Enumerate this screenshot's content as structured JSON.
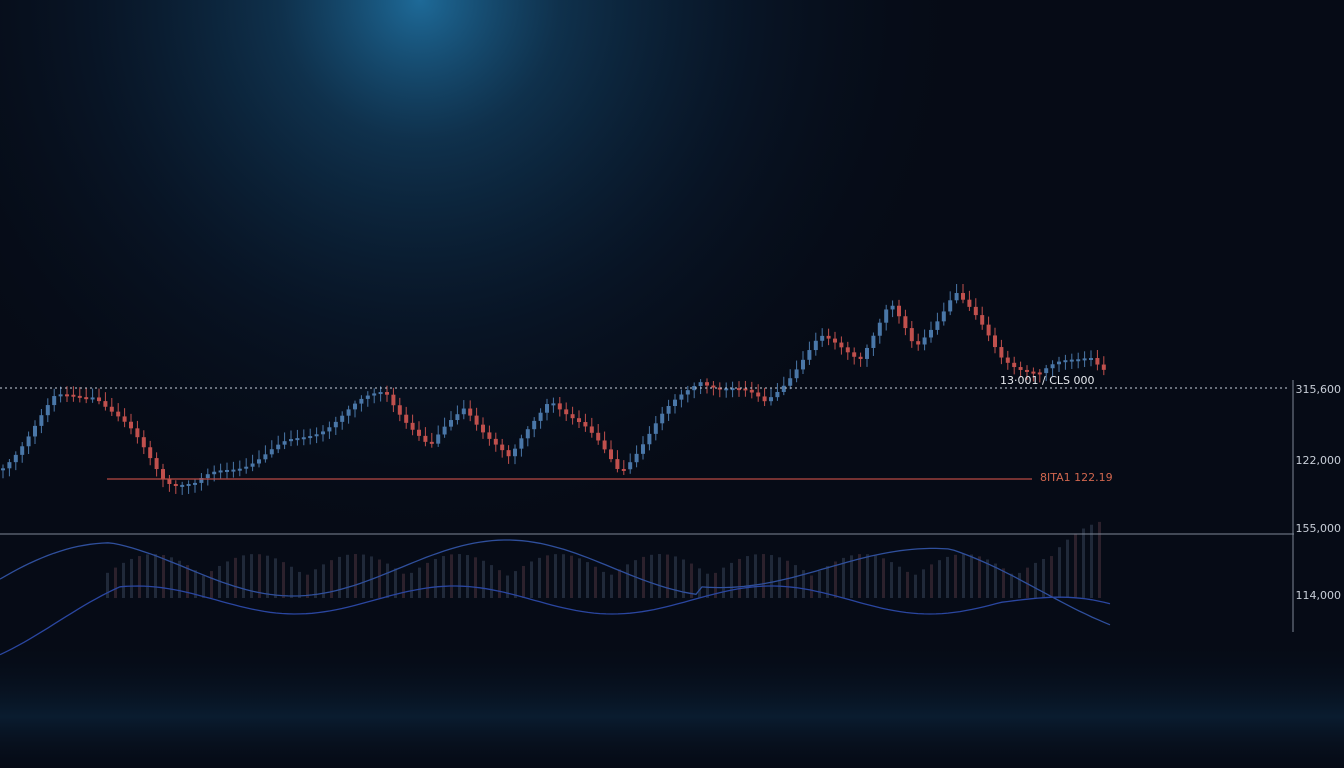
{
  "annotations": {
    "price_tag": "13·001 / CLS 000",
    "level_tag": "8ITA1 122.19"
  },
  "axis_labels": [
    "315,600",
    "122,000",
    "155,000",
    "114,000"
  ]
}
